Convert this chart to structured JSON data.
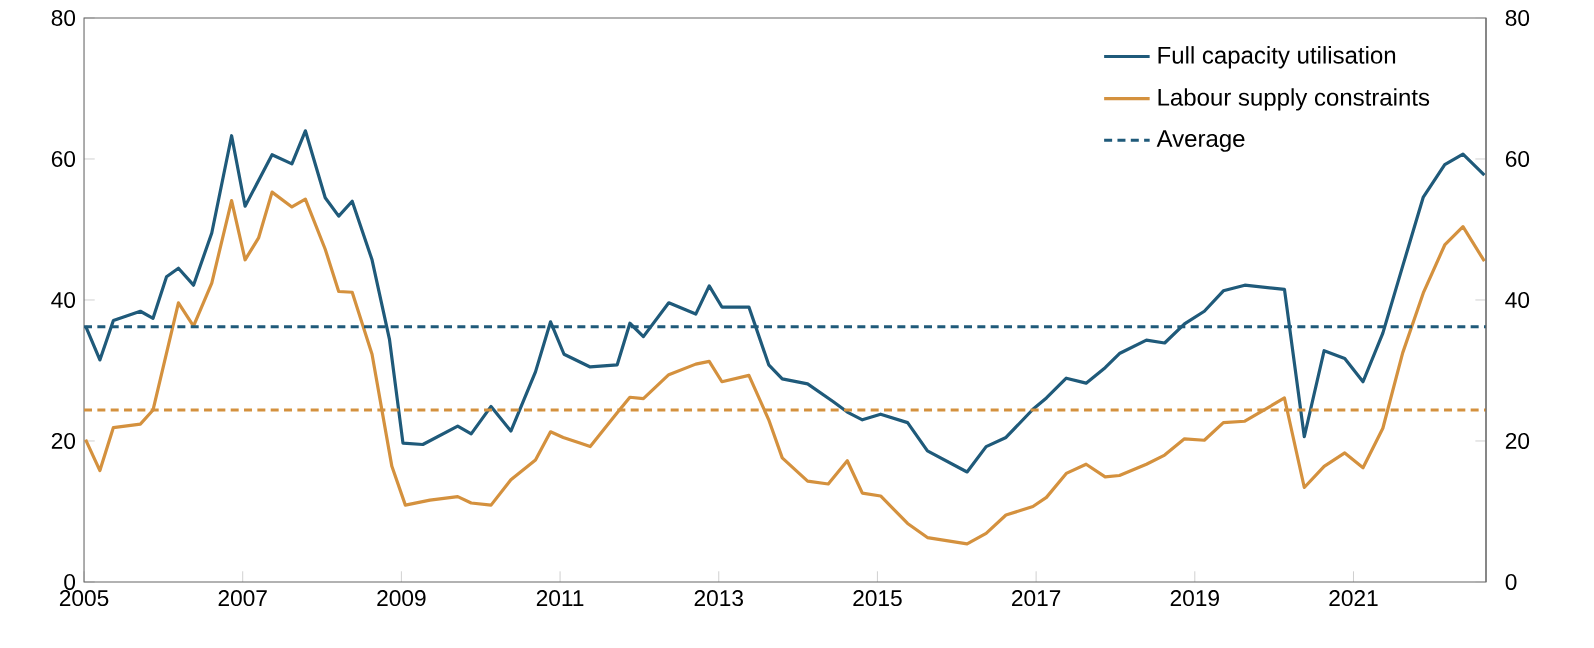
{
  "chart_data": {
    "type": "line",
    "xlim": [
      2005,
      2022.67
    ],
    "xticks": [
      2005,
      2007,
      2009,
      2011,
      2013,
      2015,
      2017,
      2019,
      2021
    ],
    "ylim": [
      0,
      80
    ],
    "yticks": [
      0,
      20,
      40,
      60,
      80
    ],
    "y2lim": [
      0,
      80
    ],
    "y2ticks": [
      0,
      20,
      40,
      60,
      80
    ],
    "legend": "top right",
    "grid": false,
    "marker": "none",
    "line_style": "solid",
    "series": [
      {
        "name": "Full capacity utilisation",
        "color": "#1f5a7a",
        "x": [
          2005.02,
          2005.2,
          2005.37,
          2005.71,
          2005.87,
          2006.04,
          2006.19,
          2006.38,
          2006.61,
          2006.86,
          2007.03,
          2007.37,
          2007.62,
          2007.79,
          2008.04,
          2008.21,
          2008.38,
          2008.63,
          2008.85,
          2009.02,
          2009.27,
          2009.71,
          2009.88,
          2010.13,
          2010.38,
          2010.69,
          2010.88,
          2011.05,
          2011.38,
          2011.72,
          2011.88,
          2012.05,
          2012.37,
          2012.71,
          2012.88,
          2013.04,
          2013.38,
          2013.63,
          2013.8,
          2014.12,
          2014.44,
          2014.62,
          2014.81,
          2015.04,
          2015.38,
          2015.63,
          2016.13,
          2016.37,
          2016.62,
          2016.96,
          2017.13,
          2017.38,
          2017.63,
          2017.87,
          2018.05,
          2018.39,
          2018.62,
          2018.87,
          2019.12,
          2019.36,
          2019.63,
          2020.13,
          2020.38,
          2020.63,
          2020.89,
          2021.12,
          2021.37,
          2021.62,
          2021.88,
          2022.15,
          2022.38,
          2022.65
        ],
        "values": [
          36.3,
          31.5,
          37.1,
          38.4,
          37.4,
          43.3,
          44.5,
          42.1,
          49.5,
          63.3,
          53.3,
          60.6,
          59.3,
          64.0,
          54.5,
          51.9,
          54.0,
          45.7,
          34.4,
          19.7,
          19.5,
          22.1,
          21.0,
          24.9,
          21.4,
          29.8,
          36.9,
          32.3,
          30.5,
          30.8,
          36.7,
          34.8,
          39.6,
          38.0,
          42.0,
          39.0,
          39.0,
          30.8,
          28.8,
          28.1,
          25.6,
          24.1,
          23.0,
          23.8,
          22.6,
          18.6,
          15.6,
          19.2,
          20.5,
          24.5,
          26.1,
          28.9,
          28.2,
          30.4,
          32.4,
          34.3,
          33.9,
          36.6,
          38.4,
          41.3,
          42.1,
          41.5,
          20.6,
          32.8,
          31.7,
          28.4,
          35.3,
          44.8,
          54.6,
          59.2,
          60.7,
          57.7
        ]
      },
      {
        "name": "Labour supply constraints",
        "color": "#d4913e",
        "x": [
          2005.02,
          2005.2,
          2005.37,
          2005.71,
          2005.87,
          2006.19,
          2006.38,
          2006.61,
          2006.86,
          2007.03,
          2007.2,
          2007.37,
          2007.62,
          2007.79,
          2008.04,
          2008.21,
          2008.38,
          2008.63,
          2008.88,
          2009.05,
          2009.36,
          2009.71,
          2009.88,
          2010.13,
          2010.38,
          2010.69,
          2010.88,
          2011.04,
          2011.25,
          2011.38,
          2011.72,
          2011.88,
          2012.05,
          2012.37,
          2012.71,
          2012.88,
          2013.04,
          2013.38,
          2013.63,
          2013.8,
          2014.12,
          2014.38,
          2014.62,
          2014.81,
          2015.04,
          2015.38,
          2015.63,
          2016.13,
          2016.37,
          2016.62,
          2016.96,
          2017.13,
          2017.38,
          2017.63,
          2017.87,
          2018.05,
          2018.39,
          2018.62,
          2018.87,
          2019.12,
          2019.36,
          2019.63,
          2020.13,
          2020.38,
          2020.63,
          2020.89,
          2021.12,
          2021.37,
          2021.62,
          2021.88,
          2022.15,
          2022.38,
          2022.65
        ],
        "values": [
          20.2,
          15.8,
          21.9,
          22.4,
          24.4,
          39.6,
          36.3,
          42.4,
          54.1,
          45.7,
          48.8,
          55.3,
          53.2,
          54.3,
          47.2,
          41.2,
          41.1,
          32.3,
          16.4,
          10.9,
          11.6,
          12.1,
          11.2,
          10.9,
          14.5,
          17.3,
          21.3,
          20.5,
          19.7,
          19.2,
          24.0,
          26.2,
          26.0,
          29.4,
          30.9,
          31.3,
          28.4,
          29.3,
          23.0,
          17.6,
          14.3,
          13.9,
          17.2,
          12.6,
          12.2,
          8.3,
          6.3,
          5.4,
          6.9,
          9.5,
          10.7,
          12.0,
          15.4,
          16.7,
          14.9,
          15.1,
          16.7,
          18.0,
          20.3,
          20.1,
          22.6,
          22.8,
          26.1,
          13.4,
          16.4,
          18.3,
          16.2,
          21.8,
          32.5,
          41.0,
          47.8,
          50.4,
          45.5
        ]
      }
    ],
    "ref_lines": [
      {
        "axis": "y",
        "value": 36.2,
        "color": "#1f5a7a",
        "line_style": "dashed",
        "label": "Average"
      },
      {
        "axis": "y",
        "value": 24.4,
        "color": "#d4913e",
        "line_style": "dashed"
      }
    ]
  }
}
